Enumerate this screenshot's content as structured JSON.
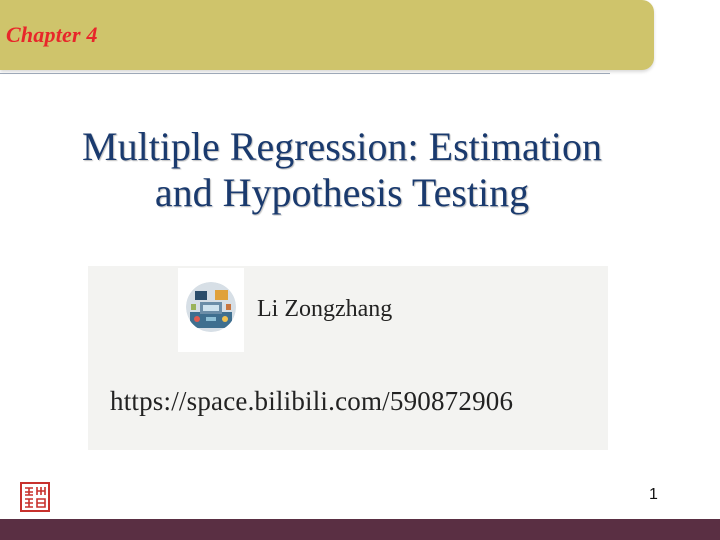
{
  "header": {
    "chapter_label": "Chapter 4",
    "bar_color": "#cfc46b",
    "label_color": "#e8262a"
  },
  "slide": {
    "title_line1": "Multiple Regression: Estimation",
    "title_line2": "and Hypothesis Testing",
    "title_color": "#1a3a6e"
  },
  "author": {
    "name": "Li Zongzhang",
    "url": "https://space.bilibili.com/590872906",
    "avatar_icon": "avatar-illustration"
  },
  "footer": {
    "page_number": "1",
    "seal_icon": "red-seal-stamp",
    "bar_color": "#5a2f43"
  }
}
